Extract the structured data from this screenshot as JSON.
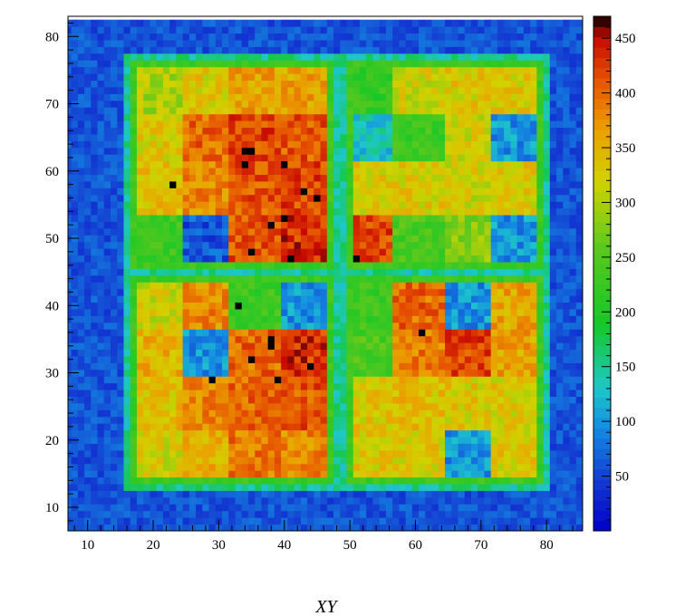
{
  "chart_data": {
    "type": "heatmap",
    "title": "",
    "xlabel": "XY",
    "ylabel": "",
    "xlim": [
      7,
      85.5
    ],
    "ylim": [
      6.5,
      83
    ],
    "x_ticks": [
      10,
      20,
      30,
      40,
      50,
      60,
      70,
      80
    ],
    "y_ticks": [
      10,
      20,
      30,
      40,
      50,
      60,
      70,
      80
    ],
    "colorbar": {
      "min": 0,
      "max": 470,
      "ticks": [
        50,
        100,
        150,
        200,
        250,
        300,
        350,
        400,
        450
      ]
    },
    "description_grid": {
      "frame_value": 230,
      "background_value": 60,
      "quadrants": [
        {
          "name": "upper-left",
          "x": [
            16.5,
            47.5
          ],
          "y": [
            45.5,
            76.5
          ]
        },
        {
          "name": "upper-right",
          "x": [
            49.5,
            79.5
          ],
          "y": [
            45.5,
            76.5
          ]
        },
        {
          "name": "lower-left",
          "x": [
            16.5,
            47.5
          ],
          "y": [
            13.5,
            44.5
          ]
        },
        {
          "name": "lower-right",
          "x": [
            49.5,
            79.5
          ],
          "y": [
            13.5,
            44.5
          ]
        }
      ],
      "blocks_upper_left": [
        [
          300,
          330,
          360,
          360
        ],
        [
          330,
          400,
          420,
          410
        ],
        [
          340,
          380,
          410,
          420
        ],
        [
          230,
          60,
          410,
          430
        ]
      ],
      "blocks_upper_right": [
        [
          220,
          320,
          330,
          330
        ],
        [
          130,
          230,
          320,
          100
        ],
        [
          330,
          330,
          320,
          330
        ],
        [
          420,
          240,
          280,
          100
        ]
      ],
      "blocks_lower_left": [
        [
          320,
          380,
          230,
          100
        ],
        [
          350,
          100,
          400,
          430
        ],
        [
          340,
          380,
          400,
          410
        ],
        [
          320,
          350,
          390,
          380
        ]
      ],
      "blocks_lower_right": [
        [
          230,
          400,
          100,
          360
        ],
        [
          240,
          390,
          420,
          360
        ],
        [
          330,
          340,
          330,
          330
        ],
        [
          330,
          330,
          100,
          330
        ]
      ],
      "hot_pixels": [
        [
          23,
          58
        ],
        [
          33,
          40
        ],
        [
          34,
          63
        ],
        [
          35,
          63
        ],
        [
          34,
          61
        ],
        [
          40,
          61
        ],
        [
          38,
          52
        ],
        [
          40,
          53
        ],
        [
          43,
          57
        ],
        [
          45,
          56
        ],
        [
          35,
          48
        ],
        [
          41,
          47
        ],
        [
          51,
          47
        ],
        [
          38,
          35
        ],
        [
          35,
          32
        ],
        [
          38,
          34
        ],
        [
          44,
          31
        ],
        [
          29,
          29
        ],
        [
          39,
          29
        ],
        [
          61,
          36
        ]
      ]
    }
  }
}
